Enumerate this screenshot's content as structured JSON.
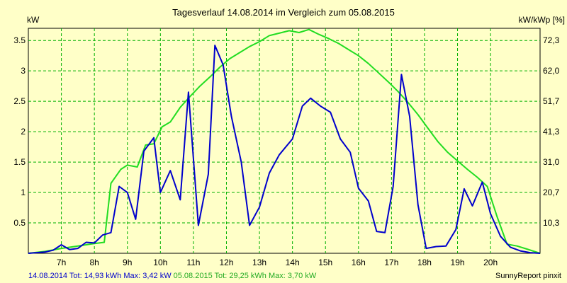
{
  "colors": {
    "background": "#ffffc8",
    "grid": "#00b000",
    "series_2014": "#0000cc",
    "series_2015": "#22dd22",
    "text": "#000000"
  },
  "chart_data": {
    "type": "line",
    "title": "Tagesverlauf 14.08.2014 im Vergleich zum 05.08.2015",
    "ylabel": "kW",
    "y2label": "kW/kWp [%]",
    "xlim": [
      6.0,
      21.5
    ],
    "ylim": [
      0,
      3.7
    ],
    "x_ticks": [
      7,
      8,
      9,
      10,
      11,
      12,
      13,
      14,
      15,
      16,
      17,
      18,
      19,
      20
    ],
    "x_tick_labels": [
      "7h",
      "8h",
      "9h",
      "10h",
      "11h",
      "12h",
      "13h",
      "14h",
      "15h",
      "16h",
      "17h",
      "18h",
      "19h",
      "20h"
    ],
    "y_ticks": [
      0.5,
      1,
      1.5,
      2,
      2.5,
      3,
      3.5
    ],
    "y_tick_labels": [
      "0.5",
      "1",
      "1.5",
      "2",
      "2.5",
      "3",
      "3.5"
    ],
    "y2_tick_labels": [
      "10,3",
      "20,7",
      "31,0",
      "41,3",
      "51,7",
      "62,0",
      "72,3"
    ],
    "grid": true,
    "series": [
      {
        "name": "14.08.2014",
        "points": [
          [
            6.0,
            0
          ],
          [
            6.5,
            0.02
          ],
          [
            6.75,
            0.05
          ],
          [
            7.0,
            0.14
          ],
          [
            7.25,
            0.06
          ],
          [
            7.5,
            0.08
          ],
          [
            7.75,
            0.18
          ],
          [
            8.0,
            0.17
          ],
          [
            8.25,
            0.3
          ],
          [
            8.5,
            0.34
          ],
          [
            8.75,
            1.1
          ],
          [
            9.0,
            1.0
          ],
          [
            9.25,
            0.56
          ],
          [
            9.5,
            1.68
          ],
          [
            9.8,
            1.9
          ],
          [
            10.0,
            1.0
          ],
          [
            10.3,
            1.36
          ],
          [
            10.6,
            0.88
          ],
          [
            10.85,
            2.65
          ],
          [
            11.15,
            0.46
          ],
          [
            11.45,
            1.3
          ],
          [
            11.65,
            3.42
          ],
          [
            11.9,
            3.1
          ],
          [
            12.15,
            2.25
          ],
          [
            12.45,
            1.5
          ],
          [
            12.7,
            0.46
          ],
          [
            13.0,
            0.76
          ],
          [
            13.3,
            1.32
          ],
          [
            13.6,
            1.62
          ],
          [
            14.0,
            1.88
          ],
          [
            14.3,
            2.42
          ],
          [
            14.55,
            2.55
          ],
          [
            14.85,
            2.42
          ],
          [
            15.15,
            2.32
          ],
          [
            15.45,
            1.88
          ],
          [
            15.75,
            1.66
          ],
          [
            16.0,
            1.07
          ],
          [
            16.3,
            0.86
          ],
          [
            16.55,
            0.36
          ],
          [
            16.8,
            0.34
          ],
          [
            17.05,
            1.1
          ],
          [
            17.3,
            2.94
          ],
          [
            17.55,
            2.25
          ],
          [
            17.8,
            0.8
          ],
          [
            18.05,
            0.08
          ],
          [
            18.35,
            0.11
          ],
          [
            18.65,
            0.12
          ],
          [
            18.95,
            0.39
          ],
          [
            19.2,
            1.06
          ],
          [
            19.45,
            0.78
          ],
          [
            19.75,
            1.17
          ],
          [
            20.0,
            0.65
          ],
          [
            20.3,
            0.28
          ],
          [
            20.6,
            0.1
          ],
          [
            20.9,
            0.04
          ],
          [
            21.2,
            0.01
          ],
          [
            21.5,
            0
          ]
        ]
      },
      {
        "name": "05.08.2015",
        "points": [
          [
            6.0,
            0
          ],
          [
            6.5,
            0.03
          ],
          [
            7.0,
            0.08
          ],
          [
            7.5,
            0.12
          ],
          [
            8.0,
            0.16
          ],
          [
            8.3,
            0.18
          ],
          [
            8.5,
            1.15
          ],
          [
            8.8,
            1.38
          ],
          [
            9.0,
            1.45
          ],
          [
            9.3,
            1.42
          ],
          [
            9.55,
            1.78
          ],
          [
            9.8,
            1.8
          ],
          [
            10.05,
            2.08
          ],
          [
            10.3,
            2.16
          ],
          [
            10.6,
            2.4
          ],
          [
            10.9,
            2.58
          ],
          [
            11.2,
            2.75
          ],
          [
            11.5,
            2.9
          ],
          [
            11.8,
            3.06
          ],
          [
            12.1,
            3.2
          ],
          [
            12.4,
            3.3
          ],
          [
            12.7,
            3.4
          ],
          [
            13.0,
            3.48
          ],
          [
            13.3,
            3.58
          ],
          [
            13.6,
            3.62
          ],
          [
            13.9,
            3.66
          ],
          [
            14.2,
            3.63
          ],
          [
            14.5,
            3.68
          ],
          [
            14.8,
            3.6
          ],
          [
            15.1,
            3.53
          ],
          [
            15.4,
            3.45
          ],
          [
            15.7,
            3.35
          ],
          [
            16.0,
            3.25
          ],
          [
            16.3,
            3.12
          ],
          [
            16.6,
            2.97
          ],
          [
            16.9,
            2.82
          ],
          [
            17.2,
            2.66
          ],
          [
            17.5,
            2.48
          ],
          [
            17.8,
            2.28
          ],
          [
            18.1,
            2.06
          ],
          [
            18.4,
            1.84
          ],
          [
            18.7,
            1.66
          ],
          [
            19.0,
            1.52
          ],
          [
            19.3,
            1.38
          ],
          [
            19.6,
            1.25
          ],
          [
            19.9,
            1.1
          ],
          [
            20.2,
            0.6
          ],
          [
            20.5,
            0.15
          ],
          [
            20.8,
            0.12
          ],
          [
            21.1,
            0.07
          ],
          [
            21.5,
            0
          ]
        ]
      }
    ]
  },
  "footer": {
    "summary_2014": "14.08.2014 Tot: 14,93 kWh Max: 3,42 kW",
    "summary_2015": "05.08.2015 Tot: 29,25 kWh Max: 3,70 kW",
    "credit": "SunnyReport pinxit"
  }
}
